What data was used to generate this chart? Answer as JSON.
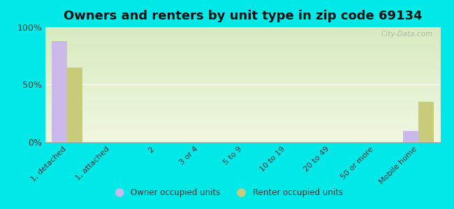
{
  "title": "Owners and renters by unit type in zip code 69134",
  "categories": [
    "1, detached",
    "1, attached",
    "2",
    "3 or 4",
    "5 to 9",
    "10 to 19",
    "20 to 49",
    "50 or more",
    "Mobile home"
  ],
  "owner_values": [
    88,
    0,
    0,
    0,
    0,
    0,
    0,
    0,
    10
  ],
  "renter_values": [
    65,
    0,
    0,
    0,
    0,
    0,
    0,
    0,
    35
  ],
  "owner_color": "#c9b8e8",
  "renter_color": "#c8cc7a",
  "background_outer": "#00e8e8",
  "background_plot_top": "#d8ecc0",
  "background_plot_bottom": "#f0f8e0",
  "bar_width": 0.35,
  "ylim": [
    0,
    100
  ],
  "yticks": [
    0,
    50,
    100
  ],
  "ytick_labels": [
    "0%",
    "50%",
    "100%"
  ],
  "title_fontsize": 13,
  "legend_labels": [
    "Owner occupied units",
    "Renter occupied units"
  ],
  "watermark": "City-Data.com"
}
